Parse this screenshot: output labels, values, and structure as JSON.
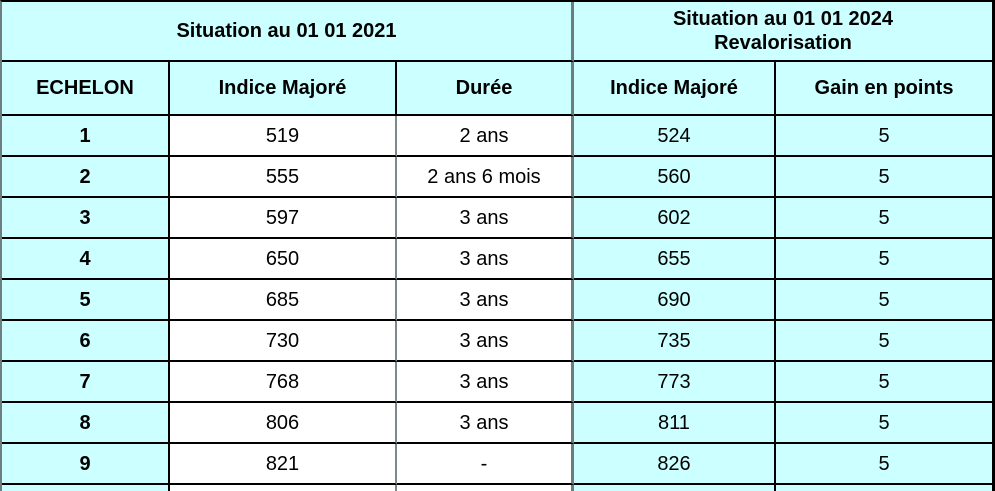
{
  "section_headers": {
    "left": "Situation au 01 01 2021",
    "right_line1": "Situation au 01 01 2024",
    "right_line2": "Revalorisation"
  },
  "column_headers": [
    "ECHELON",
    "Indice Majoré",
    "Durée",
    "Indice Majoré",
    "Gain en points"
  ],
  "rows": [
    {
      "echelon": "1",
      "indice_2021": "519",
      "duree": "2 ans",
      "indice_2024": "524",
      "gain": "5"
    },
    {
      "echelon": "2",
      "indice_2021": "555",
      "duree": "2 ans 6 mois",
      "indice_2024": "560",
      "gain": "5"
    },
    {
      "echelon": "3",
      "indice_2021": "597",
      "duree": "3 ans",
      "indice_2024": "602",
      "gain": "5"
    },
    {
      "echelon": "4",
      "indice_2021": "650",
      "duree": "3 ans",
      "indice_2024": "655",
      "gain": "5"
    },
    {
      "echelon": "5",
      "indice_2021": "685",
      "duree": "3 ans",
      "indice_2024": "690",
      "gain": "5"
    },
    {
      "echelon": "6",
      "indice_2021": "730",
      "duree": "3 ans",
      "indice_2024": "735",
      "gain": "5"
    },
    {
      "echelon": "7",
      "indice_2021": "768",
      "duree": "3 ans",
      "indice_2024": "773",
      "gain": "5"
    },
    {
      "echelon": "8",
      "indice_2021": "806",
      "duree": "3 ans",
      "indice_2024": "811",
      "gain": "5"
    },
    {
      "echelon": "9",
      "indice_2021": "821",
      "duree": "-",
      "indice_2024": "826",
      "gain": "5"
    }
  ],
  "colors": {
    "cell_cyan": "#ccffff",
    "cell_white": "#ffffff",
    "border_black": "#000000",
    "divider_gray": "#6b7c7c"
  }
}
